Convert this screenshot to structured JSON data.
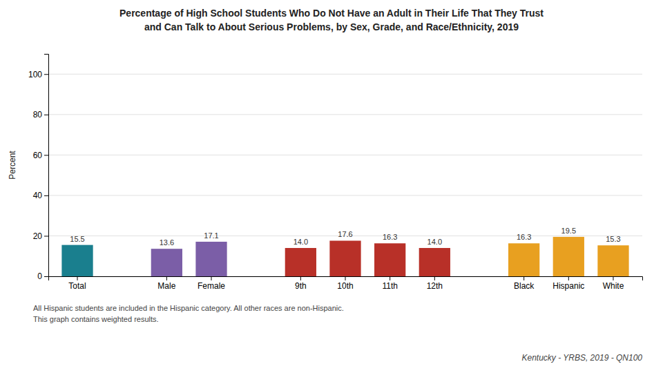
{
  "chart_data": {
    "type": "bar",
    "title": "Percentage of High School Students Who Do Not Have an Adult in Their Life That They Trust",
    "subtitle": "and Can Talk to About Serious Problems, by Sex, Grade, and Race/Ethnicity, 2019",
    "y_label": "Percent",
    "categories": [
      "Total",
      null,
      "Male",
      "Female",
      null,
      "9th",
      "10th",
      "11th",
      "12th",
      null,
      "Black",
      "Hispanic",
      "White"
    ],
    "values": [
      15.5,
      null,
      13.6,
      17.1,
      null,
      14.0,
      17.6,
      16.3,
      14.0,
      null,
      16.3,
      19.5,
      15.3
    ],
    "value_labels": [
      "15.5",
      null,
      "13.6",
      "17.1",
      null,
      "14.0",
      "17.6",
      "16.3",
      "14.0",
      null,
      "16.3",
      "19.5",
      "15.3"
    ],
    "colors": [
      "#1a7f8e",
      null,
      "#7b5ea7",
      "#7b5ea7",
      null,
      "#b83028",
      "#b83028",
      "#b83028",
      "#b83028",
      null,
      "#e8a020",
      "#e8a020",
      "#e8a020"
    ],
    "ylim": [
      0,
      110
    ],
    "yticks": [
      0,
      20,
      40,
      60,
      80,
      100
    ],
    "grid": true,
    "data_labels": true,
    "annotations": [
      "All Hispanic students are included in the Hispanic category.  All other races are non-Hispanic.",
      "This graph contains weighted results.",
      "Kentucky - YRBS, 2019 - QN100"
    ]
  }
}
